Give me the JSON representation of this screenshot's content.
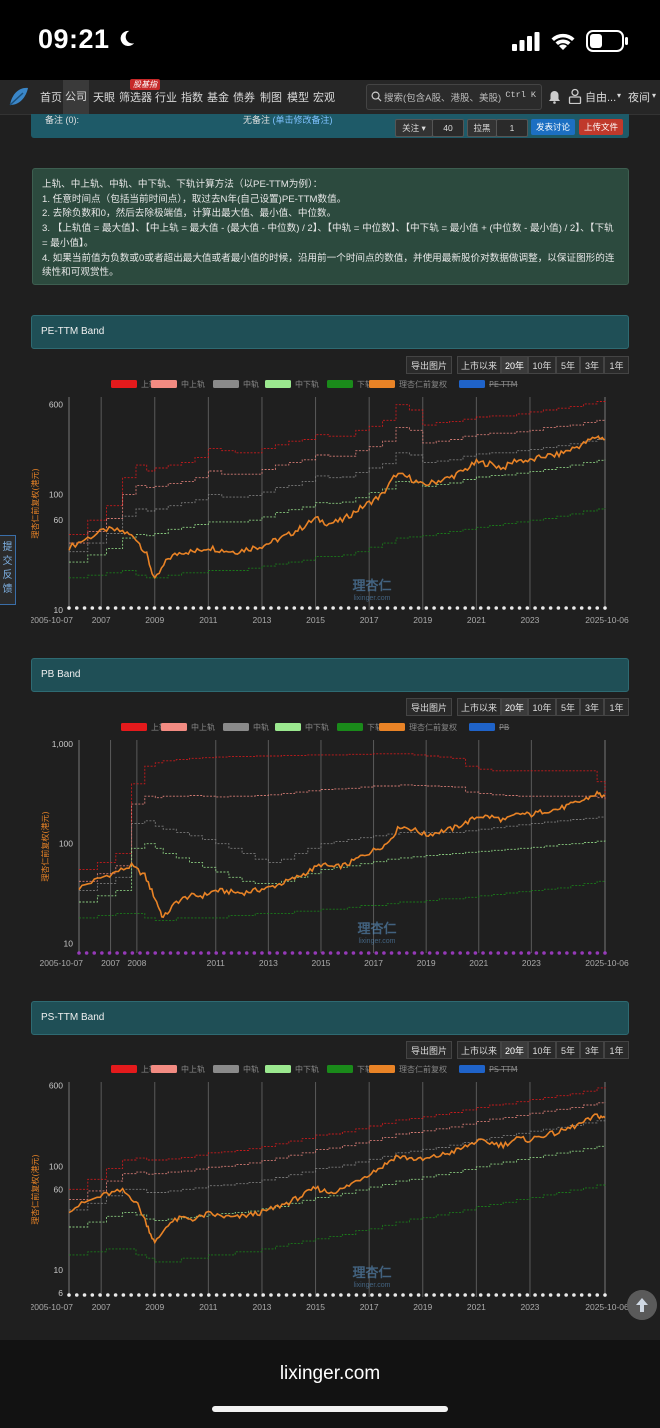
{
  "status": {
    "time": "09:21"
  },
  "nav": {
    "items": [
      "首页",
      "公司",
      "天眼",
      "筛选器",
      "行业",
      "指数",
      "基金",
      "债券",
      "制图",
      "模型",
      "宏观"
    ],
    "badge": "股基指",
    "search_placeholder": "搜索(包含A股、港股、美股)",
    "search_shortcut": "Ctrl K",
    "user": "自由...",
    "theme": "夜间"
  },
  "toppanel": {
    "label": "备注 (0):",
    "note_prefix": "无备注",
    "note_link": "(单击修改备注)",
    "follow_label": "关注",
    "follow_count": "40",
    "block_label": "拉黑",
    "block_count": "1",
    "discuss_btn": "发表讨论",
    "upload_btn": "上传文件"
  },
  "description": {
    "lines": [
      "上轨、中上轨、中轨、中下轨、下轨计算方法（以PE-TTM为例）：",
      "1. 任意时间点（包括当前时间点），取过去N年(自己设置)PE-TTM数值。",
      "2. 去除负数和0，然后去除极端值，计算出最大值、最小值、中位数。",
      "3. 【上轨值 = 最大值】、【中上轨 = 最大值 - (最大值 - 中位数) / 2】、【中轨 = 中位数】、【中下轨 = 最小值 + (中位数 - 最小值) / 2】、【下轨 = 最小值】。",
      "4. 如果当前值为负数或0或者超出最大值或者最小值的时候，沿用前一个时间点的数值，并使用最新股价对数据做调整，以保证图形的连续性和可观赏性。"
    ]
  },
  "toolbar": {
    "export": "导出图片",
    "ranges": [
      "上市以来",
      "20年",
      "10年",
      "5年",
      "3年",
      "1年"
    ],
    "selected": "20年"
  },
  "feedback": "提交反馈",
  "watermark": {
    "cn": "理杏仁",
    "en": "lixinger.com"
  },
  "colors": {
    "upper": "#e41a1c",
    "mid_upper": "#f28b82",
    "mid": "#8a8a8a",
    "mid_lower": "#9be88f",
    "lower": "#1a8a1a",
    "price": "#e98326",
    "metric": "#1f63c9"
  },
  "chart_data": [
    {
      "type": "line",
      "title": "PE-TTM Band",
      "ylabel": "理杏仁前复权(港元)",
      "scale": "log",
      "ylim": [
        10,
        700
      ],
      "y_ticks": [
        "10",
        "60",
        "100",
        "600"
      ],
      "x_ticks": [
        "2005-10-07",
        "2007",
        "2009",
        "2011",
        "2013",
        "2015",
        "2017",
        "2019",
        "2021",
        "2023",
        "2025-10-06"
      ],
      "legend": [
        "上轨",
        "中上轨",
        "中轨",
        "中下轨",
        "下轨",
        "理杏仁前复权",
        "PE-TTM"
      ],
      "x": [
        2005.8,
        2006.5,
        2007.2,
        2007.8,
        2008.3,
        2008.7,
        2009.0,
        2009.5,
        2010.0,
        2010.5,
        2011.0,
        2011.5,
        2012.0,
        2012.5,
        2013.0,
        2013.5,
        2014.0,
        2014.5,
        2015.0,
        2015.5,
        2016.0,
        2016.5,
        2017.0,
        2017.5,
        2018.0,
        2018.5,
        2019.0,
        2019.5,
        2020.0,
        2020.5,
        2021.0,
        2021.5,
        2022.0,
        2022.5,
        2023.0,
        2023.5,
        2024.0,
        2024.5,
        2025.0,
        2025.5,
        2025.8
      ],
      "series": [
        {
          "name": "上轨",
          "values": [
            45,
            60,
            80,
            140,
            180,
            160,
            170,
            180,
            190,
            210,
            250,
            240,
            230,
            230,
            250,
            270,
            290,
            300,
            330,
            320,
            320,
            360,
            390,
            440,
            600,
            540,
            400,
            420,
            430,
            450,
            470,
            480,
            480,
            500,
            520,
            540,
            560,
            580,
            610,
            640,
            650
          ]
        },
        {
          "name": "中上轨",
          "values": [
            38,
            48,
            62,
            100,
            120,
            115,
            118,
            125,
            130,
            140,
            160,
            150,
            150,
            150,
            165,
            180,
            190,
            200,
            220,
            215,
            215,
            240,
            260,
            290,
            380,
            360,
            280,
            290,
            300,
            320,
            330,
            340,
            340,
            350,
            360,
            380,
            390,
            400,
            420,
            440,
            445
          ]
        },
        {
          "name": "中轨",
          "values": [
            32,
            38,
            46,
            65,
            75,
            72,
            75,
            80,
            85,
            90,
            100,
            95,
            95,
            98,
            105,
            115,
            120,
            130,
            145,
            140,
            142,
            155,
            170,
            185,
            230,
            220,
            190,
            195,
            200,
            215,
            225,
            230,
            230,
            240,
            245,
            255,
            265,
            275,
            290,
            300,
            305
          ]
        },
        {
          "name": "中下轨",
          "values": [
            26,
            30,
            34,
            42,
            45,
            44,
            46,
            50,
            52,
            55,
            58,
            58,
            58,
            60,
            64,
            70,
            74,
            78,
            85,
            84,
            86,
            94,
            104,
            112,
            130,
            128,
            118,
            122,
            126,
            135,
            142,
            146,
            148,
            153,
            158,
            165,
            172,
            180,
            190,
            198,
            200
          ]
        },
        {
          "name": "下轨",
          "values": [
            19,
            20,
            21,
            22,
            20,
            19,
            19,
            20,
            21,
            21,
            22,
            22,
            22,
            23,
            24,
            25,
            26,
            27,
            29,
            29,
            30,
            32,
            35,
            38,
            42,
            43,
            44,
            46,
            48,
            50,
            52,
            54,
            56,
            58,
            60,
            62,
            65,
            68,
            72,
            75,
            76
          ]
        },
        {
          "name": "理杏仁前复权",
          "values": [
            35,
            42,
            50,
            48,
            42,
            30,
            18,
            28,
            32,
            32,
            35,
            33,
            32,
            34,
            36,
            40,
            45,
            52,
            62,
            56,
            60,
            72,
            85,
            100,
            150,
            140,
            120,
            130,
            140,
            160,
            190,
            185,
            170,
            200,
            195,
            215,
            220,
            245,
            275,
            320,
            300
          ]
        }
      ]
    },
    {
      "type": "line",
      "title": "PB Band",
      "ylabel": "理杏仁前复权(港元)",
      "scale": "log",
      "ylim": [
        8,
        1100
      ],
      "y_ticks": [
        "10",
        "100",
        "1,000"
      ],
      "x_ticks": [
        "2005-10-07",
        "2007",
        "2008",
        "2011",
        "2013",
        "2015",
        "2017",
        "2019",
        "2021",
        "2023",
        "2025-10-06"
      ],
      "legend": [
        "上轨",
        "中上轨",
        "中轨",
        "中下轨",
        "下轨",
        "理杏仁前复权",
        "PB"
      ],
      "x": [
        2005.8,
        2006.5,
        2007.2,
        2007.8,
        2008.3,
        2008.7,
        2009.0,
        2009.5,
        2010.0,
        2010.5,
        2011.0,
        2011.5,
        2012.0,
        2012.5,
        2013.0,
        2013.5,
        2014.0,
        2014.5,
        2015.0,
        2015.5,
        2016.0,
        2016.5,
        2017.0,
        2017.5,
        2018.0,
        2018.5,
        2019.0,
        2019.5,
        2020.0,
        2020.5,
        2021.0,
        2021.5,
        2022.0,
        2022.5,
        2023.0,
        2023.5,
        2024.0,
        2024.5,
        2025.0,
        2025.5,
        2025.8
      ],
      "series": [
        {
          "name": "上轨",
          "values": [
            55,
            65,
            80,
            400,
            600,
            650,
            680,
            700,
            720,
            730,
            740,
            750,
            750,
            760,
            760,
            770,
            770,
            780,
            780,
            780,
            790,
            790,
            800,
            800,
            800,
            780,
            760,
            740,
            720,
            600,
            560,
            540,
            540,
            540,
            540,
            540,
            540,
            540,
            540,
            420,
            280
          ]
        },
        {
          "name": "中上轨",
          "values": [
            42,
            50,
            60,
            250,
            300,
            290,
            300,
            300,
            305,
            300,
            295,
            300,
            300,
            305,
            310,
            320,
            330,
            340,
            350,
            355,
            360,
            370,
            380,
            380,
            390,
            385,
            380,
            375,
            370,
            330,
            320,
            310,
            305,
            300,
            300,
            300,
            300,
            300,
            300,
            290,
            270
          ]
        },
        {
          "name": "中轨",
          "values": [
            34,
            40,
            46,
            160,
            170,
            150,
            140,
            130,
            120,
            110,
            100,
            90,
            80,
            70,
            65,
            70,
            80,
            90,
            100,
            105,
            110,
            115,
            120,
            125,
            130,
            130,
            130,
            130,
            130,
            135,
            140,
            145,
            150,
            155,
            160,
            165,
            170,
            175,
            180,
            185,
            185
          ]
        },
        {
          "name": "中下轨",
          "values": [
            26,
            30,
            34,
            90,
            100,
            90,
            80,
            72,
            65,
            58,
            52,
            46,
            42,
            40,
            40,
            42,
            46,
            50,
            55,
            58,
            60,
            63,
            66,
            70,
            72,
            74,
            76,
            78,
            80,
            82,
            84,
            86,
            88,
            90,
            92,
            95,
            98,
            100,
            103,
            106,
            108
          ]
        },
        {
          "name": "下轨",
          "values": [
            18,
            19,
            20,
            20,
            18,
            17,
            17,
            18,
            18,
            18,
            18,
            19,
            19,
            20,
            20,
            20,
            21,
            21,
            22,
            22,
            23,
            24,
            24,
            25,
            26,
            26,
            27,
            28,
            28,
            29,
            30,
            31,
            32,
            33,
            34,
            35,
            36,
            38,
            40,
            42,
            43
          ]
        },
        {
          "name": "理杏仁前复权",
          "values": [
            36,
            44,
            52,
            60,
            48,
            28,
            18,
            26,
            30,
            30,
            34,
            33,
            32,
            34,
            36,
            40,
            45,
            52,
            62,
            58,
            62,
            74,
            86,
            100,
            150,
            140,
            122,
            132,
            142,
            162,
            190,
            186,
            172,
            200,
            196,
            214,
            222,
            246,
            275,
            320,
            300
          ]
        }
      ]
    },
    {
      "type": "line",
      "title": "PS-TTM Band",
      "ylabel": "理杏仁前复权(港元)",
      "scale": "log",
      "ylim": [
        5.5,
        650
      ],
      "y_ticks": [
        "6",
        "10",
        "60",
        "100",
        "600"
      ],
      "x_ticks": [
        "2005-10-07",
        "2007",
        "2009",
        "2011",
        "2013",
        "2015",
        "2017",
        "2019",
        "2021",
        "2023",
        "2025-10-06"
      ],
      "legend": [
        "上轨",
        "中上轨",
        "中轨",
        "中下轨",
        "下轨",
        "理杏仁前复权",
        "PS-TTM"
      ],
      "x": [
        2005.8,
        2006.5,
        2007.2,
        2007.8,
        2008.3,
        2008.7,
        2009.0,
        2009.5,
        2010.0,
        2010.5,
        2011.0,
        2011.5,
        2012.0,
        2012.5,
        2013.0,
        2013.5,
        2014.0,
        2014.5,
        2015.0,
        2015.5,
        2016.0,
        2016.5,
        2017.0,
        2017.5,
        2018.0,
        2018.5,
        2019.0,
        2019.5,
        2020.0,
        2020.5,
        2021.0,
        2021.5,
        2022.0,
        2022.5,
        2023.0,
        2023.5,
        2024.0,
        2024.5,
        2025.0,
        2025.5,
        2025.8
      ],
      "series": [
        {
          "name": "上轨",
          "values": [
            60,
            75,
            95,
            115,
            120,
            115,
            115,
            118,
            122,
            128,
            135,
            138,
            142,
            148,
            155,
            165,
            175,
            185,
            200,
            205,
            215,
            230,
            245,
            260,
            280,
            290,
            300,
            315,
            330,
            350,
            370,
            390,
            400,
            420,
            440,
            460,
            480,
            500,
            530,
            570,
            580
          ]
        },
        {
          "name": "中上轨",
          "values": [
            48,
            58,
            72,
            85,
            88,
            84,
            85,
            88,
            90,
            94,
            98,
            100,
            104,
            108,
            114,
            120,
            128,
            135,
            145,
            150,
            158,
            168,
            178,
            190,
            205,
            212,
            220,
            230,
            240,
            255,
            270,
            285,
            295,
            310,
            325,
            340,
            355,
            370,
            390,
            410,
            415
          ]
        },
        {
          "name": "中轨",
          "values": [
            38,
            44,
            52,
            60,
            60,
            56,
            56,
            58,
            60,
            62,
            65,
            66,
            68,
            70,
            74,
            78,
            83,
            88,
            95,
            98,
            103,
            110,
            117,
            125,
            135,
            140,
            146,
            152,
            160,
            170,
            180,
            190,
            198,
            208,
            218,
            228,
            238,
            248,
            262,
            275,
            278
          ]
        },
        {
          "name": "中下轨",
          "values": [
            26,
            29,
            33,
            36,
            34,
            31,
            30,
            31,
            32,
            33,
            34,
            35,
            36,
            37,
            39,
            41,
            44,
            47,
            50,
            52,
            55,
            59,
            63,
            67,
            72,
            75,
            79,
            83,
            87,
            93,
            99,
            105,
            110,
            116,
            122,
            128,
            134,
            140,
            148,
            156,
            158
          ]
        },
        {
          "name": "下轨",
          "values": [
            14,
            15,
            16,
            16,
            14,
            13,
            12,
            12,
            13,
            13,
            14,
            14,
            15,
            15,
            16,
            17,
            18,
            19,
            20,
            21,
            22,
            24,
            25,
            27,
            29,
            31,
            32,
            34,
            36,
            38,
            41,
            43,
            45,
            48,
            50,
            53,
            56,
            59,
            62,
            66,
            67
          ]
        },
        {
          "name": "理杏仁前复权",
          "values": [
            38,
            46,
            54,
            58,
            46,
            28,
            18,
            28,
            32,
            31,
            35,
            33,
            32,
            34,
            36,
            40,
            45,
            52,
            62,
            56,
            60,
            72,
            85,
            100,
            125,
            120,
            115,
            125,
            135,
            150,
            175,
            170,
            160,
            185,
            180,
            200,
            210,
            235,
            265,
            310,
            295
          ]
        }
      ]
    }
  ]
}
